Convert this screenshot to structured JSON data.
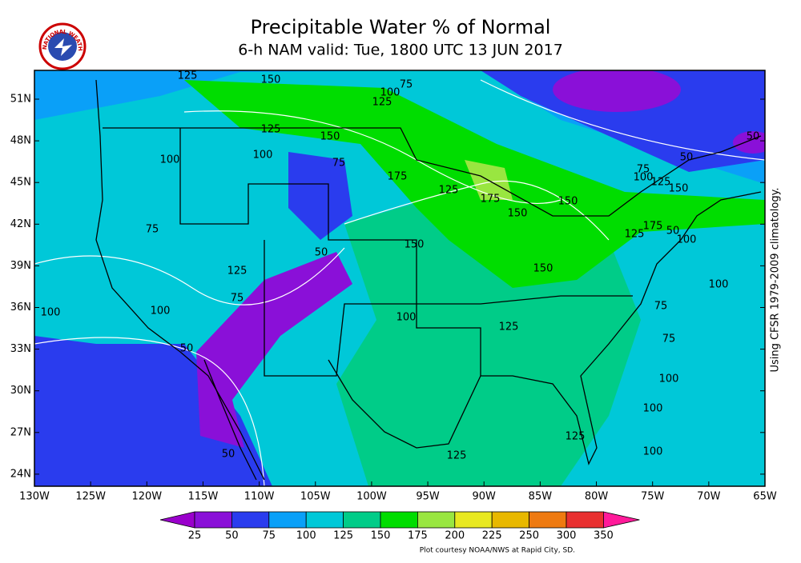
{
  "header": {
    "title": "Precipitable Water % of Normal",
    "subtitle": "6-h NAM valid: Tue, 1800 UTC 13 JUN 2017",
    "logo_text": "NATIONAL WEATHER SERVICE"
  },
  "map": {
    "lat_labels": [
      "51N",
      "48N",
      "45N",
      "42N",
      "39N",
      "36N",
      "33N",
      "30N",
      "27N",
      "24N"
    ],
    "lon_labels": [
      "130W",
      "125W",
      "120W",
      "115W",
      "110W",
      "105W",
      "100W",
      "95W",
      "90W",
      "85W",
      "80W",
      "75W",
      "70W",
      "65W"
    ],
    "contour_labels": [
      125,
      150,
      75,
      100,
      125,
      125,
      150,
      100,
      100,
      75,
      175,
      50,
      50,
      75,
      100,
      125,
      150,
      125,
      175,
      150,
      150,
      75,
      175,
      50,
      125,
      100,
      150,
      50,
      125,
      150,
      100,
      75,
      100,
      100,
      75,
      100,
      125,
      75,
      50,
      100,
      100,
      125,
      50,
      125,
      100
    ]
  },
  "colorbar": {
    "levels": [
      25,
      50,
      75,
      100,
      125,
      150,
      175,
      200,
      225,
      250,
      300,
      350
    ],
    "colors": [
      "#9a00cc",
      "#8a10d8",
      "#2a3cee",
      "#0aa0f8",
      "#00c8d8",
      "#00cc88",
      "#00dd00",
      "#99e640",
      "#e8e820",
      "#e8b800",
      "#ee7a10",
      "#e83030",
      "#ff1a9a"
    ]
  },
  "note": "Using CFSR 1979-2009 climatology.",
  "credit": "Plot courtesy NOAA/NWS at Rapid City, SD."
}
